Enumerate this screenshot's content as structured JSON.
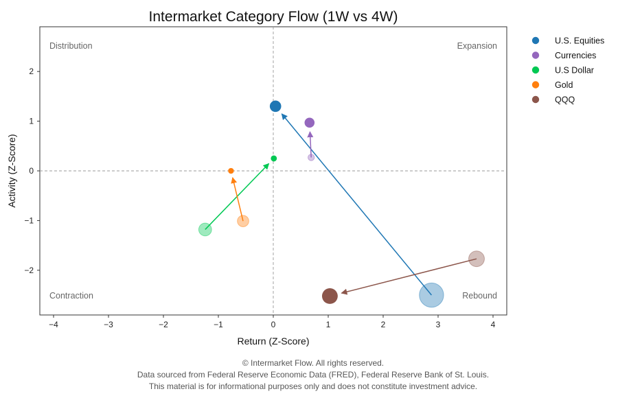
{
  "chart_data": {
    "type": "scatter",
    "title": "Intermarket Category Flow (1W vs 4W)",
    "xlabel": "Return (Z-Score)",
    "ylabel": "Activity (Z-Score)",
    "xlim": [
      -4.25,
      4.25
    ],
    "ylim": [
      -2.9,
      2.9
    ],
    "xticks": [
      -4,
      -3,
      -2,
      -1,
      0,
      1,
      2,
      3,
      4
    ],
    "yticks": [
      -2,
      -1,
      0,
      1,
      2
    ],
    "grid": false,
    "reference_lines": {
      "x": 0,
      "y": 0,
      "style": "dashed"
    },
    "legend_position": "outside-top-right",
    "quadrant_labels": {
      "top_left": "Distribution",
      "top_right": "Expansion",
      "bottom_left": "Contraction",
      "bottom_right": "Rebound"
    },
    "series": [
      {
        "name": "U.S. Equities",
        "color": "#1f77b4",
        "from": [
          2.88,
          -2.5
        ],
        "to": [
          0.04,
          1.3
        ],
        "size_from": 3.4,
        "size_to": 1.6
      },
      {
        "name": "Currencies",
        "color": "#9467bd",
        "from": [
          0.69,
          0.27
        ],
        "to": [
          0.66,
          0.97
        ],
        "size_from": 0.9,
        "size_to": 1.4
      },
      {
        "name": "U.S Dollar",
        "color": "#00c853",
        "from": [
          -1.24,
          -1.18
        ],
        "to": [
          0.01,
          0.25
        ],
        "size_from": 1.8,
        "size_to": 0.85
      },
      {
        "name": "Gold",
        "color": "#ff7f0e",
        "from": [
          -0.55,
          -1.01
        ],
        "to": [
          -0.77,
          0.0
        ],
        "size_from": 1.6,
        "size_to": 0.8
      },
      {
        "name": "QQQ",
        "color": "#8c564b",
        "from": [
          3.7,
          -1.77
        ],
        "to": [
          1.03,
          -2.52
        ],
        "size_from": 2.2,
        "size_to": 2.2
      }
    ]
  },
  "footer": {
    "line1": "© Intermarket Flow. All rights reserved.",
    "line2": "Data sourced from Federal Reserve Economic Data (FRED), Federal Reserve Bank of St. Louis.",
    "line3": "This material is for informational purposes only and does not constitute investment advice."
  }
}
